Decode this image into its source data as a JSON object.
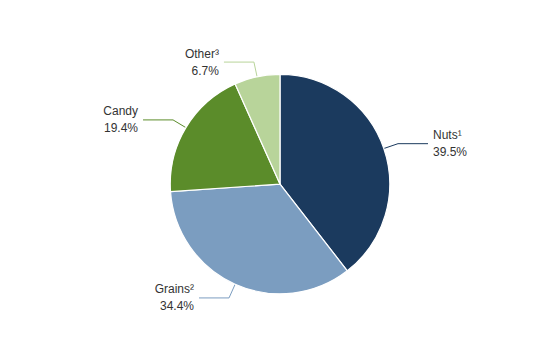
{
  "chart_data": {
    "type": "pie",
    "categories": [
      "Nuts¹",
      "Grains²",
      "Candy",
      "Other³"
    ],
    "values": [
      39.5,
      34.4,
      19.4,
      6.7
    ],
    "value_labels": [
      "39.5%",
      "34.4%",
      "19.4%",
      "6.7%"
    ],
    "colors": [
      "#1b3a5e",
      "#7b9dc0",
      "#5b8c2a",
      "#b8d49a"
    ],
    "data_labels": true
  }
}
